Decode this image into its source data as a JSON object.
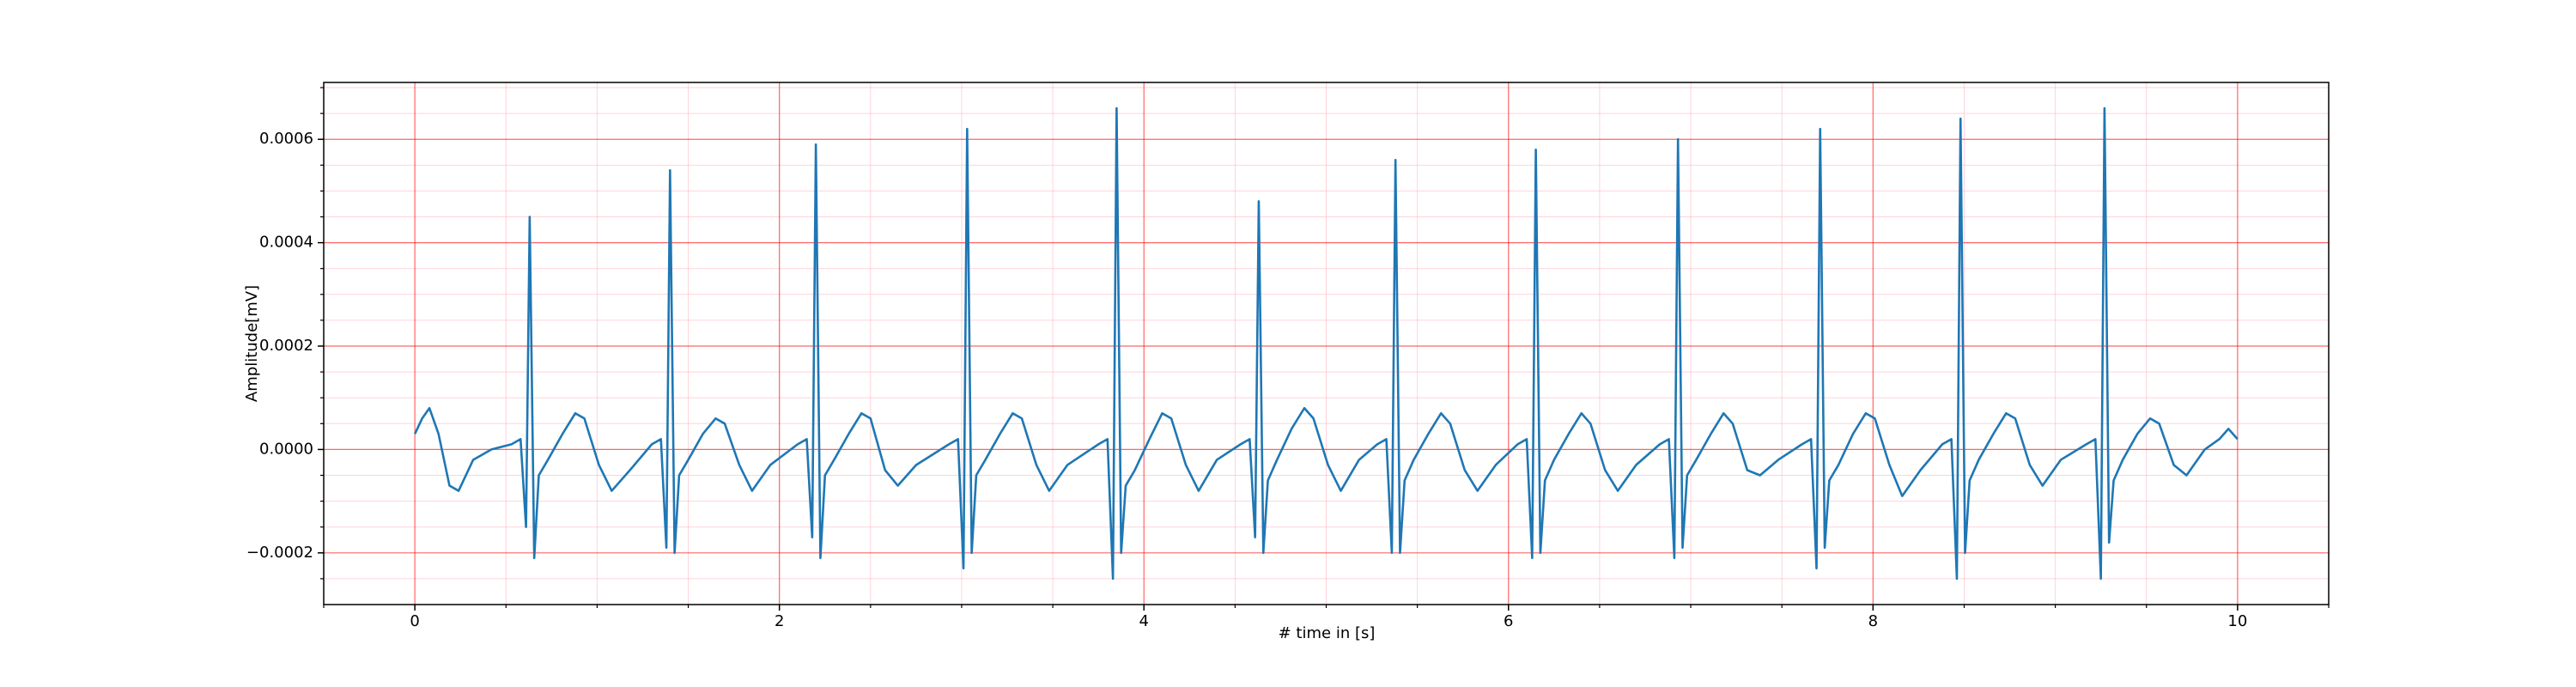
{
  "chart_data": {
    "type": "line",
    "xlabel": "# time in [s]",
    "ylabel": "Amplitude[mV]",
    "color": "#1f77b4",
    "xlim": [
      -0.5,
      10.5
    ],
    "xticks": [
      0,
      2,
      4,
      6,
      8,
      10
    ],
    "xminorticks": [
      -0.5,
      0.5,
      1,
      1.5,
      2.5,
      3,
      3.5,
      4.5,
      5,
      5.5,
      6.5,
      7,
      7.5,
      8.5,
      9,
      9.5,
      10.5
    ],
    "ylim": [
      -0.0003,
      0.00071
    ],
    "yticks": [
      {
        "value": -0.0002,
        "label": "−0.0002"
      },
      {
        "value": 0,
        "label": "0.0000"
      },
      0.0002,
      0.0004,
      0.0006
    ],
    "yminorticks": [
      -0.00025,
      -0.00015,
      -0.0001,
      -5e-05,
      5e-05,
      0.0001,
      0.00015,
      0.00025,
      0.0003,
      0.00035,
      0.00045,
      0.0005,
      0.00055,
      0.00065,
      0.0007
    ],
    "grid": true,
    "minor_grid": true,
    "x": [
      0,
      0.04,
      0.08,
      0.13,
      0.19,
      0.24,
      0.32,
      0.42,
      0.53,
      0.58,
      0.61,
      0.63,
      0.655,
      0.68,
      0.73,
      0.81,
      0.88,
      0.93,
      1.01,
      1.08,
      1.18,
      1.3,
      1.35,
      1.38,
      1.4,
      1.425,
      1.45,
      1.5,
      1.58,
      1.65,
      1.7,
      1.78,
      1.85,
      1.95,
      2.1,
      2.15,
      2.18,
      2.2,
      2.225,
      2.25,
      2.3,
      2.38,
      2.45,
      2.5,
      2.58,
      2.65,
      2.75,
      2.93,
      2.98,
      3.01,
      3.03,
      3.055,
      3.08,
      3.13,
      3.21,
      3.28,
      3.33,
      3.41,
      3.48,
      3.58,
      3.75,
      3.8,
      3.83,
      3.85,
      3.875,
      3.9,
      3.95,
      4.03,
      4.1,
      4.15,
      4.23,
      4.3,
      4.4,
      4.53,
      4.58,
      4.61,
      4.63,
      4.655,
      4.68,
      4.73,
      4.81,
      4.88,
      4.93,
      5.01,
      5.08,
      5.18,
      5.28,
      5.33,
      5.36,
      5.38,
      5.405,
      5.43,
      5.48,
      5.56,
      5.63,
      5.68,
      5.76,
      5.83,
      5.93,
      6.05,
      6.1,
      6.13,
      6.15,
      6.175,
      6.2,
      6.25,
      6.33,
      6.4,
      6.45,
      6.53,
      6.6,
      6.7,
      6.83,
      6.88,
      6.91,
      6.93,
      6.955,
      6.98,
      7.03,
      7.11,
      7.18,
      7.23,
      7.31,
      7.38,
      7.48,
      7.61,
      7.66,
      7.69,
      7.71,
      7.735,
      7.76,
      7.81,
      7.89,
      7.96,
      8.01,
      8.09,
      8.16,
      8.26,
      8.38,
      8.43,
      8.46,
      8.48,
      8.505,
      8.53,
      8.58,
      8.66,
      8.73,
      8.78,
      8.86,
      8.93,
      9.03,
      9.17,
      9.22,
      9.25,
      9.27,
      9.295,
      9.32,
      9.37,
      9.45,
      9.52,
      9.57,
      9.65,
      9.72,
      9.82,
      9.9,
      9.95,
      10.0
    ],
    "values": [
      3e-05,
      6e-05,
      8e-05,
      3e-05,
      -7e-05,
      -8e-05,
      -2e-05,
      0.0,
      1e-05,
      2e-05,
      -0.00015,
      0.00045,
      -0.00021,
      -5e-05,
      -2e-05,
      3e-05,
      7e-05,
      6e-05,
      -3e-05,
      -8e-05,
      -4e-05,
      1e-05,
      2e-05,
      -0.00019,
      0.00054,
      -0.0002,
      -5e-05,
      -2e-05,
      3e-05,
      6e-05,
      5e-05,
      -3e-05,
      -8e-05,
      -3e-05,
      1e-05,
      2e-05,
      -0.00017,
      0.00059,
      -0.00021,
      -5e-05,
      -2e-05,
      3e-05,
      7e-05,
      6e-05,
      -4e-05,
      -7e-05,
      -3e-05,
      1e-05,
      2e-05,
      -0.00023,
      0.00062,
      -0.0002,
      -5e-05,
      -2e-05,
      3e-05,
      7e-05,
      6e-05,
      -3e-05,
      -8e-05,
      -3e-05,
      1e-05,
      2e-05,
      -0.00025,
      0.00066,
      -0.0002,
      -7e-05,
      -4e-05,
      2e-05,
      7e-05,
      6e-05,
      -3e-05,
      -8e-05,
      -2e-05,
      1e-05,
      2e-05,
      -0.00017,
      0.00048,
      -0.0002,
      -6e-05,
      -2e-05,
      4e-05,
      8e-05,
      6e-05,
      -3e-05,
      -8e-05,
      -2e-05,
      1e-05,
      2e-05,
      -0.0002,
      0.00056,
      -0.0002,
      -6e-05,
      -2e-05,
      3e-05,
      7e-05,
      5e-05,
      -4e-05,
      -8e-05,
      -3e-05,
      1e-05,
      2e-05,
      -0.00021,
      0.00058,
      -0.0002,
      -6e-05,
      -2e-05,
      3e-05,
      7e-05,
      5e-05,
      -4e-05,
      -8e-05,
      -3e-05,
      1e-05,
      2e-05,
      -0.00021,
      0.0006,
      -0.00019,
      -5e-05,
      -2e-05,
      3e-05,
      7e-05,
      5e-05,
      -4e-05,
      -5e-05,
      -2e-05,
      1e-05,
      2e-05,
      -0.00023,
      0.00062,
      -0.00019,
      -6e-05,
      -3e-05,
      3e-05,
      7e-05,
      6e-05,
      -3e-05,
      -9e-05,
      -4e-05,
      1e-05,
      2e-05,
      -0.00025,
      0.00064,
      -0.0002,
      -6e-05,
      -2e-05,
      3e-05,
      7e-05,
      6e-05,
      -3e-05,
      -7e-05,
      -2e-05,
      1e-05,
      2e-05,
      -0.00025,
      0.00066,
      -0.00018,
      -6e-05,
      -2e-05,
      3e-05,
      6e-05,
      5e-05,
      -3e-05,
      -5e-05,
      0.0,
      2e-05,
      4e-05,
      2e-05
    ]
  }
}
